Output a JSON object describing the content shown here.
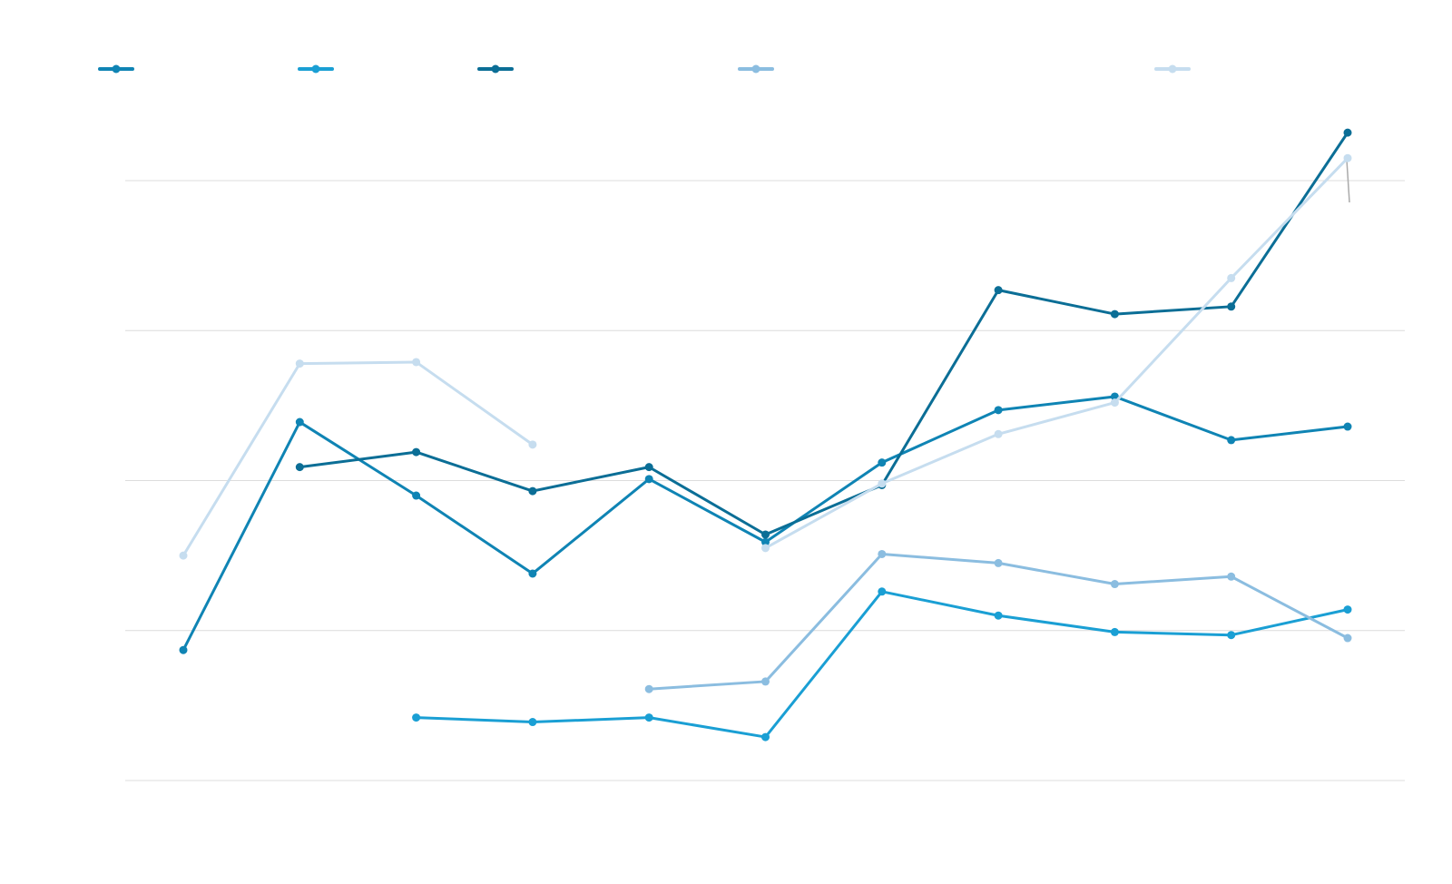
{
  "chart_data": {
    "type": "line",
    "title": "",
    "xlabel": "",
    "ylabel": "",
    "categories": [
      "",
      "",
      "",
      "",
      "",
      "",
      "",
      "",
      "",
      "",
      ""
    ],
    "ylim": [
      0,
      4
    ],
    "grid": true,
    "legend_placement": "top",
    "series": [
      {
        "color": "#0f84b4",
        "values": [
          0.87,
          2.39,
          1.9,
          1.38,
          2.01,
          1.59,
          2.12,
          2.47,
          2.56,
          2.27,
          2.36
        ]
      },
      {
        "color": "#1a9fd4",
        "values": [
          null,
          null,
          0.42,
          0.39,
          0.42,
          0.29,
          1.26,
          1.1,
          0.99,
          0.97,
          1.14
        ]
      },
      {
        "color": "#0b6e96",
        "values": [
          null,
          2.09,
          2.19,
          1.93,
          2.09,
          1.64,
          1.97,
          3.27,
          3.11,
          3.16,
          4.32
        ]
      },
      {
        "color": "#8bbde0",
        "values": [
          null,
          null,
          null,
          null,
          0.61,
          0.66,
          1.51,
          1.45,
          1.31,
          1.36,
          0.95
        ]
      },
      {
        "color": "#c6ddef",
        "values": [
          1.5,
          2.78,
          2.79,
          2.24,
          null,
          1.55,
          1.98,
          2.31,
          2.52,
          3.35,
          4.15
        ]
      }
    ]
  }
}
